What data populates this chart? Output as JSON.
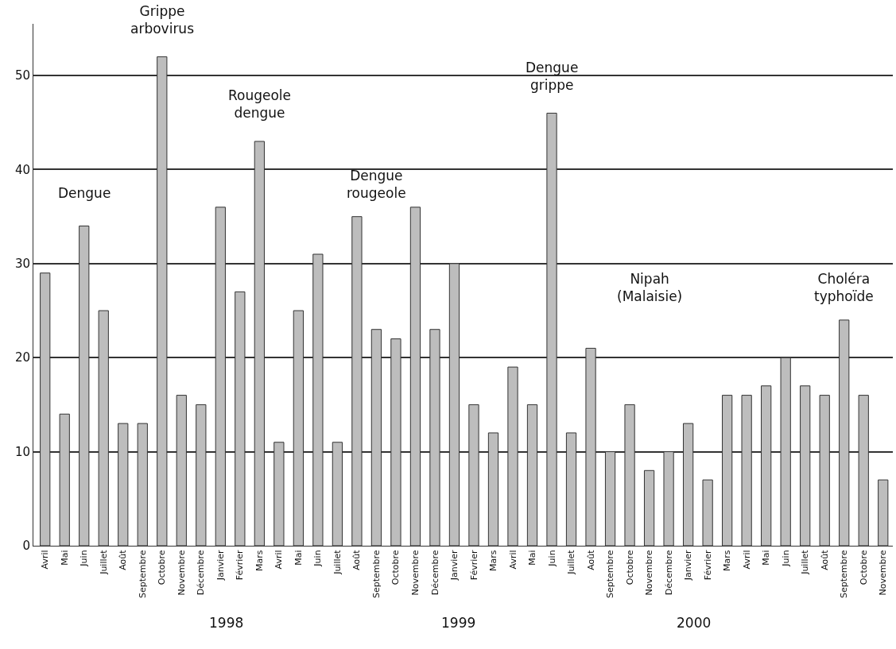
{
  "chart_data": {
    "type": "bar",
    "categories": [
      "Avril",
      "Mai",
      "Juin",
      "Juillet",
      "Août",
      "Septembre",
      "Octobre",
      "Novembre",
      "Décembre",
      "Janvier",
      "Février",
      "Mars",
      "Avril",
      "Mai",
      "Juin",
      "Juillet",
      "Août",
      "Septembre",
      "Octobre",
      "Novembre",
      "Décembre",
      "Janvier",
      "Février",
      "Mars",
      "Avril",
      "Mai",
      "Juin",
      "Juillet",
      "Août",
      "Septembre",
      "Octobre",
      "Novembre",
      "Décembre",
      "Janvier",
      "Février",
      "Mars",
      "Avril",
      "Mai",
      "Juin",
      "Juillet",
      "Août",
      "Septembre",
      "Octobre",
      "Novembre"
    ],
    "values": [
      29,
      14,
      34,
      25,
      13,
      13,
      52,
      16,
      15,
      36,
      27,
      43,
      11,
      25,
      31,
      11,
      35,
      23,
      22,
      36,
      23,
      30,
      15,
      12,
      19,
      15,
      46,
      12,
      21,
      10,
      15,
      8,
      10,
      13,
      7,
      16,
      16,
      17,
      20,
      17,
      16,
      24,
      16,
      7
    ],
    "color": "#bdbdbd",
    "ylim": [
      0,
      55.5
    ],
    "yticks": [
      0,
      10,
      20,
      30,
      40,
      50
    ],
    "grid": "y",
    "annotations": [
      "Dengue",
      "Grippe arbovirus",
      "Rougeole dengue",
      "Dengue rougeole",
      "Dengue grippe",
      "Nipah (Malaisie)",
      "Choléra typhoïde",
      "1998",
      "1999",
      "2000"
    ]
  }
}
